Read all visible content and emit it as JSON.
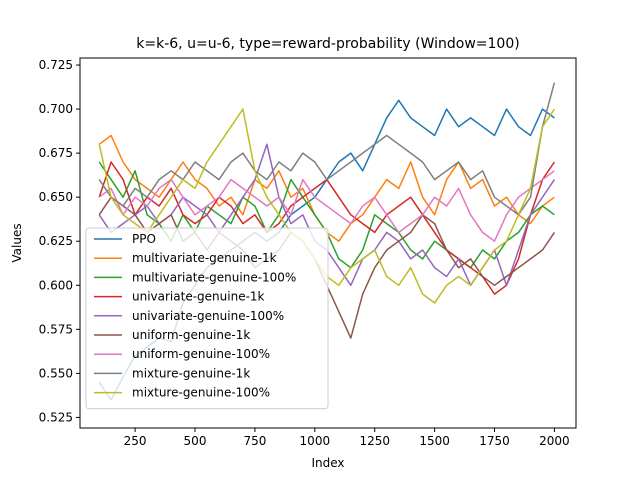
{
  "chart_data": {
    "type": "line",
    "title": "k=k-6, u=u-6, type=reward-probability (Window=100)",
    "xlabel": "Index",
    "ylabel": "Values",
    "xlim": [
      20,
      2090
    ],
    "ylim": [
      0.519,
      0.729
    ],
    "xticks": [
      250,
      500,
      750,
      1000,
      1250,
      1500,
      1750,
      2000
    ],
    "yticks": [
      0.525,
      0.55,
      0.575,
      0.6,
      0.625,
      0.65,
      0.675,
      0.7,
      0.725
    ],
    "xtick_labels": [
      "250",
      "500",
      "750",
      "1000",
      "1250",
      "1500",
      "1750",
      "2000"
    ],
    "ytick_labels": [
      "0.525",
      "0.550",
      "0.575",
      "0.600",
      "0.625",
      "0.650",
      "0.675",
      "0.700",
      "0.725"
    ],
    "grid": false,
    "legend_position": "lower-left",
    "x": [
      100,
      150,
      200,
      250,
      300,
      350,
      400,
      450,
      500,
      550,
      600,
      650,
      700,
      750,
      800,
      850,
      900,
      950,
      1000,
      1050,
      1100,
      1150,
      1200,
      1250,
      1300,
      1350,
      1400,
      1450,
      1500,
      1550,
      1600,
      1650,
      1700,
      1750,
      1800,
      1850,
      1900,
      1950,
      2000
    ],
    "series": [
      {
        "name": "PPO",
        "color": "#1f77b4",
        "values": [
          0.545,
          0.535,
          0.548,
          0.56,
          0.565,
          0.57,
          0.568,
          0.59,
          0.6,
          0.61,
          0.615,
          0.62,
          0.625,
          0.63,
          0.625,
          0.63,
          0.64,
          0.645,
          0.65,
          0.66,
          0.67,
          0.675,
          0.665,
          0.68,
          0.695,
          0.705,
          0.695,
          0.69,
          0.685,
          0.7,
          0.69,
          0.695,
          0.69,
          0.685,
          0.7,
          0.69,
          0.685,
          0.7,
          0.695
        ]
      },
      {
        "name": "multivariate-genuine-1k",
        "color": "#ff7f0e",
        "values": [
          0.68,
          0.685,
          0.67,
          0.66,
          0.655,
          0.65,
          0.66,
          0.67,
          0.66,
          0.655,
          0.645,
          0.65,
          0.64,
          0.66,
          0.655,
          0.665,
          0.65,
          0.655,
          0.64,
          0.63,
          0.625,
          0.635,
          0.64,
          0.65,
          0.66,
          0.655,
          0.67,
          0.65,
          0.64,
          0.66,
          0.67,
          0.655,
          0.66,
          0.645,
          0.65,
          0.64,
          0.635,
          0.645,
          0.65
        ]
      },
      {
        "name": "multivariate-genuine-100%",
        "color": "#2ca02c",
        "values": [
          0.67,
          0.66,
          0.65,
          0.665,
          0.64,
          0.635,
          0.625,
          0.64,
          0.63,
          0.645,
          0.64,
          0.635,
          0.65,
          0.645,
          0.63,
          0.64,
          0.66,
          0.65,
          0.64,
          0.63,
          0.615,
          0.61,
          0.62,
          0.64,
          0.635,
          0.63,
          0.62,
          0.615,
          0.625,
          0.62,
          0.615,
          0.61,
          0.62,
          0.615,
          0.625,
          0.63,
          0.64,
          0.645,
          0.64
        ]
      },
      {
        "name": "univariate-genuine-1k",
        "color": "#d62728",
        "values": [
          0.65,
          0.67,
          0.66,
          0.64,
          0.65,
          0.645,
          0.655,
          0.64,
          0.635,
          0.64,
          0.65,
          0.645,
          0.635,
          0.64,
          0.63,
          0.635,
          0.645,
          0.65,
          0.655,
          0.66,
          0.65,
          0.64,
          0.635,
          0.63,
          0.64,
          0.645,
          0.65,
          0.64,
          0.63,
          0.62,
          0.615,
          0.61,
          0.605,
          0.595,
          0.6,
          0.615,
          0.64,
          0.66,
          0.67
        ]
      },
      {
        "name": "univariate-genuine-100%",
        "color": "#9467bd",
        "values": [
          0.64,
          0.63,
          0.635,
          0.64,
          0.645,
          0.635,
          0.64,
          0.65,
          0.645,
          0.64,
          0.63,
          0.64,
          0.65,
          0.66,
          0.68,
          0.65,
          0.635,
          0.64,
          0.625,
          0.62,
          0.61,
          0.6,
          0.615,
          0.62,
          0.63,
          0.625,
          0.615,
          0.62,
          0.61,
          0.605,
          0.615,
          0.6,
          0.61,
          0.62,
          0.6,
          0.62,
          0.64,
          0.65,
          0.66
        ]
      },
      {
        "name": "uniform-genuine-1k",
        "color": "#8c564b",
        "values": [
          0.64,
          0.65,
          0.645,
          0.64,
          0.63,
          0.635,
          0.64,
          0.625,
          0.63,
          0.62,
          0.63,
          0.625,
          0.62,
          0.61,
          0.615,
          0.62,
          0.63,
          0.625,
          0.615,
          0.6,
          0.585,
          0.57,
          0.595,
          0.61,
          0.62,
          0.625,
          0.63,
          0.64,
          0.635,
          0.62,
          0.61,
          0.615,
          0.605,
          0.6,
          0.605,
          0.61,
          0.615,
          0.62,
          0.63
        ]
      },
      {
        "name": "uniform-genuine-100%",
        "color": "#e377c2",
        "values": [
          0.65,
          0.655,
          0.64,
          0.65,
          0.645,
          0.655,
          0.66,
          0.65,
          0.64,
          0.645,
          0.65,
          0.66,
          0.655,
          0.65,
          0.645,
          0.65,
          0.64,
          0.66,
          0.65,
          0.645,
          0.64,
          0.635,
          0.645,
          0.65,
          0.64,
          0.63,
          0.635,
          0.64,
          0.65,
          0.645,
          0.655,
          0.64,
          0.63,
          0.625,
          0.64,
          0.65,
          0.655,
          0.66,
          0.665
        ]
      },
      {
        "name": "mixture-genuine-1k",
        "color": "#7f7f7f",
        "values": [
          0.66,
          0.65,
          0.645,
          0.655,
          0.65,
          0.66,
          0.665,
          0.66,
          0.67,
          0.665,
          0.66,
          0.67,
          0.675,
          0.665,
          0.66,
          0.67,
          0.665,
          0.675,
          0.67,
          0.66,
          0.665,
          0.67,
          0.675,
          0.68,
          0.685,
          0.68,
          0.675,
          0.67,
          0.66,
          0.665,
          0.67,
          0.66,
          0.665,
          0.65,
          0.645,
          0.64,
          0.65,
          0.69,
          0.715
        ]
      },
      {
        "name": "mixture-genuine-100%",
        "color": "#bcbd22",
        "values": [
          0.68,
          0.65,
          0.64,
          0.635,
          0.63,
          0.64,
          0.65,
          0.66,
          0.655,
          0.67,
          0.68,
          0.69,
          0.7,
          0.665,
          0.65,
          0.64,
          0.63,
          0.625,
          0.615,
          0.605,
          0.6,
          0.61,
          0.615,
          0.62,
          0.605,
          0.6,
          0.61,
          0.595,
          0.59,
          0.6,
          0.605,
          0.6,
          0.61,
          0.62,
          0.625,
          0.64,
          0.655,
          0.69,
          0.7
        ]
      }
    ]
  }
}
